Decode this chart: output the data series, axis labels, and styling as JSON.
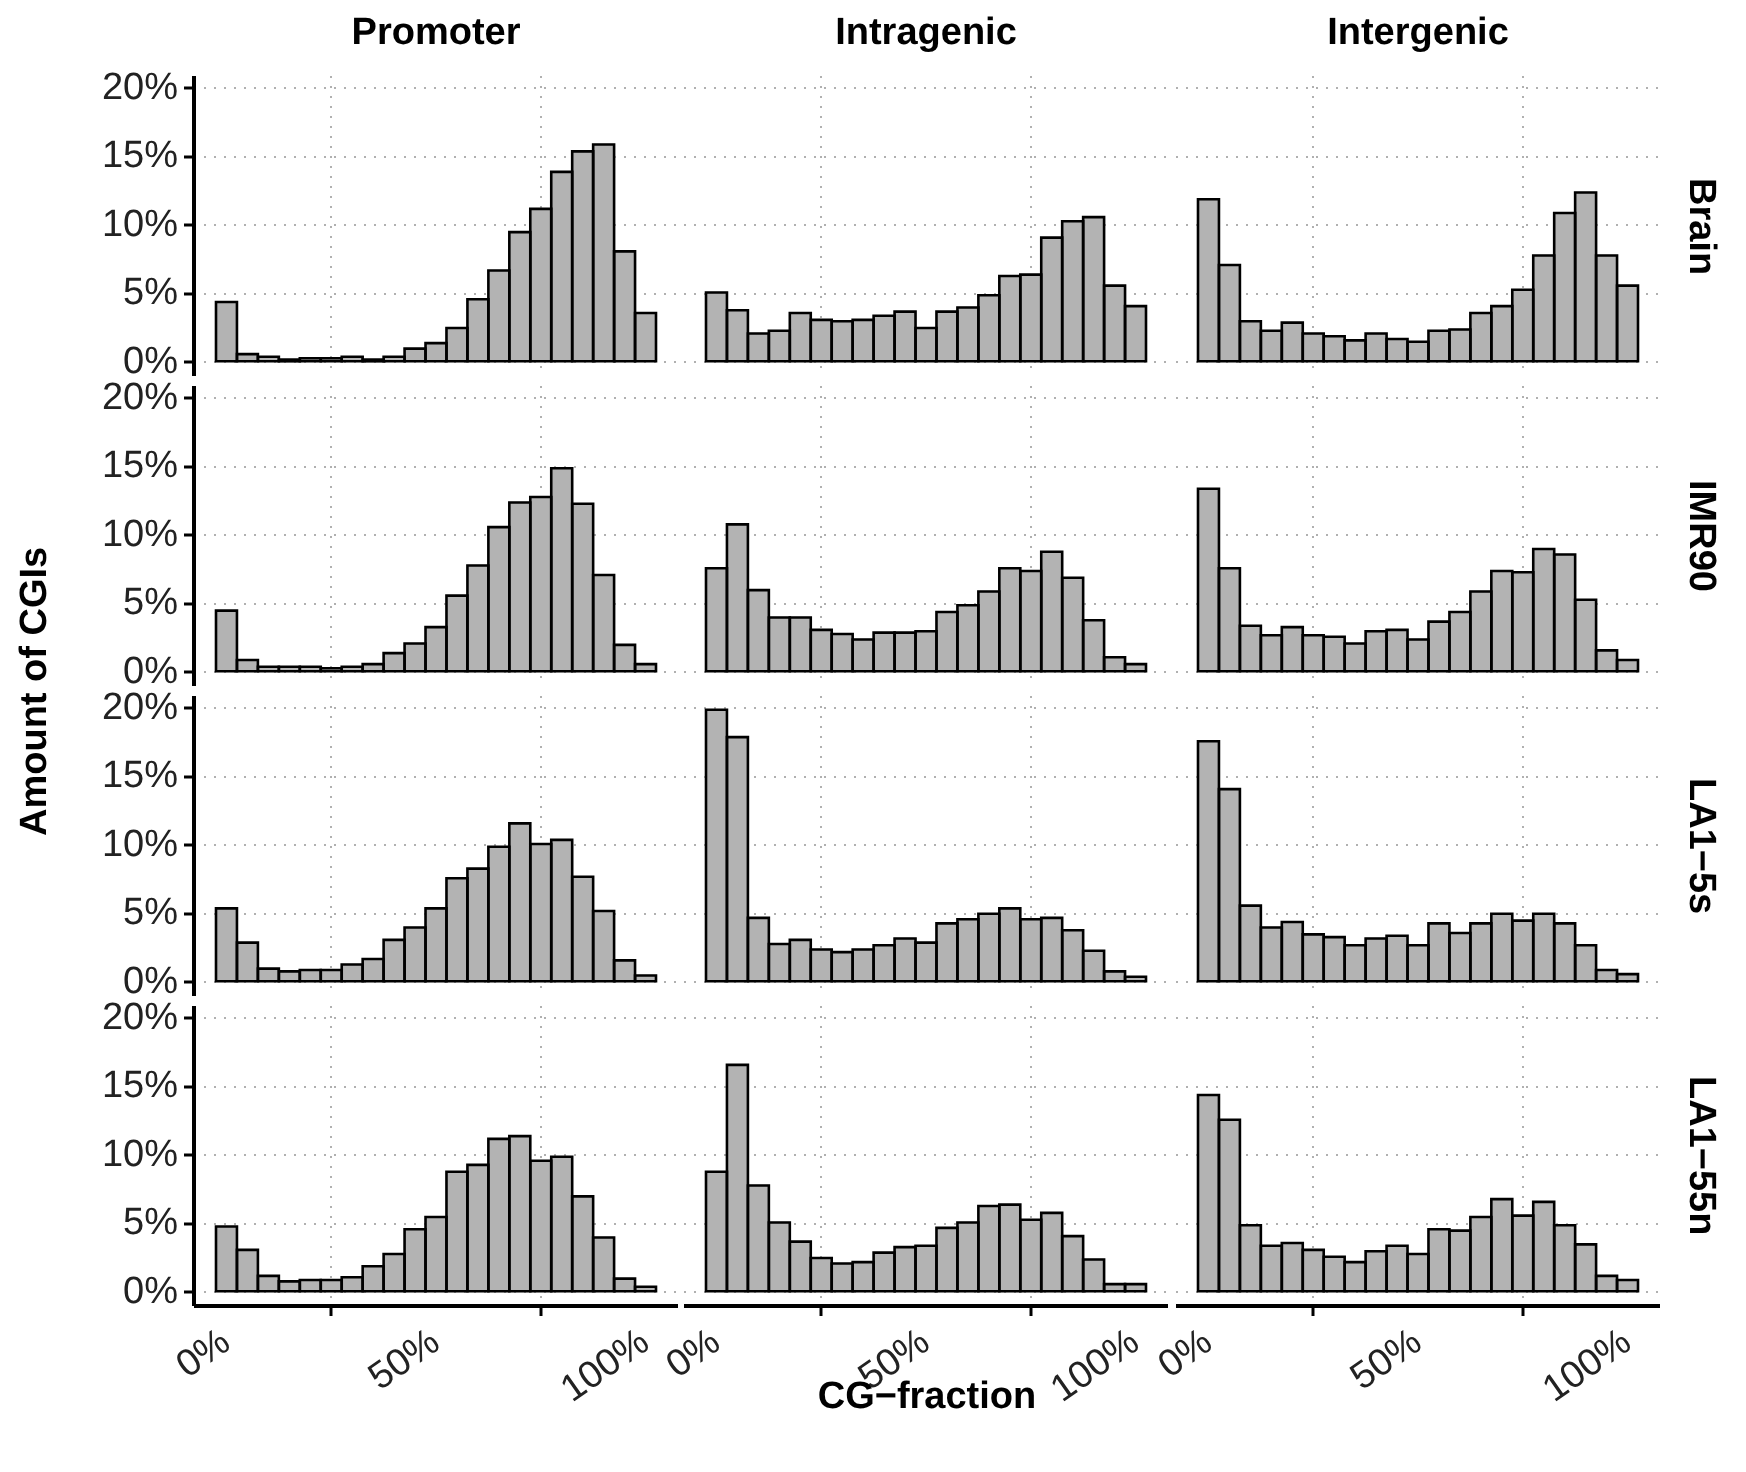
{
  "chart_data": [
    {
      "type": "histogram",
      "title": "Promoter",
      "ylabel": "Amount of CGIs",
      "tick_labels": "y",
      "color": "#b3b3b3",
      "grid": true,
      "bins": [
        -2.5,
        2.5,
        7.5,
        12.5,
        17.5,
        22.5,
        27.5,
        32.5,
        37.5,
        42.5,
        47.5,
        52.5,
        57.5,
        62.5,
        67.5,
        72.5,
        77.5,
        82.5,
        87.5,
        92.5,
        97.5,
        102.5
      ],
      "values": [
        4.4,
        0.6,
        0.4,
        0.2,
        0.3,
        0.3,
        0.4,
        0.2,
        0.4,
        1.0,
        1.4,
        2.5,
        4.6,
        6.7,
        9.5,
        11.2,
        13.9,
        15.4,
        15.9,
        8.1,
        3.6
      ],
      "xlim": [
        -7.75,
        107.75
      ],
      "ylim": [
        -1,
        20.9
      ],
      "xticks": [
        {
          "value": 0,
          "label": null
        },
        {
          "value": 50,
          "label": null
        },
        {
          "value": 100,
          "label": null
        }
      ],
      "yticks": [
        {
          "value": 0,
          "label": "0%"
        },
        {
          "value": 5,
          "label": "5%"
        },
        {
          "value": 10,
          "label": "10%"
        },
        {
          "value": 15,
          "label": "15%"
        },
        {
          "value": 20,
          "label": "20%"
        }
      ]
    },
    {
      "type": "histogram",
      "title": "Intragenic",
      "tick_labels": false,
      "color": "#b3b3b3",
      "grid": true,
      "bins": [
        -2.5,
        2.5,
        7.5,
        12.5,
        17.5,
        22.5,
        27.5,
        32.5,
        37.5,
        42.5,
        47.5,
        52.5,
        57.5,
        62.5,
        67.5,
        72.5,
        77.5,
        82.5,
        87.5,
        92.5,
        97.5,
        102.5
      ],
      "values": [
        5.1,
        3.8,
        2.1,
        2.3,
        3.6,
        3.1,
        3.0,
        3.1,
        3.4,
        3.7,
        2.5,
        3.7,
        4.0,
        4.9,
        6.3,
        6.4,
        9.1,
        10.3,
        10.6,
        5.6,
        4.1
      ],
      "xlim": [
        -7.75,
        107.75
      ],
      "ylim": [
        -1,
        20.9
      ],
      "xticks": [
        {
          "value": 0,
          "label": null
        },
        {
          "value": 50,
          "label": null
        },
        {
          "value": 100,
          "label": null
        }
      ],
      "yticks": [
        {
          "value": 0,
          "label": null
        },
        {
          "value": 5,
          "label": null
        },
        {
          "value": 10,
          "label": null
        },
        {
          "value": 15,
          "label": null
        },
        {
          "value": 20,
          "label": null
        }
      ]
    },
    {
      "type": "histogram",
      "title": "Intergenic",
      "y2label": "Brain",
      "tick_labels": false,
      "color": "#b3b3b3",
      "grid": true,
      "bins": [
        -2.5,
        2.5,
        7.5,
        12.5,
        17.5,
        22.5,
        27.5,
        32.5,
        37.5,
        42.5,
        47.5,
        52.5,
        57.5,
        62.5,
        67.5,
        72.5,
        77.5,
        82.5,
        87.5,
        92.5,
        97.5,
        102.5
      ],
      "values": [
        11.9,
        7.1,
        3.0,
        2.3,
        2.9,
        2.1,
        1.9,
        1.6,
        2.1,
        1.7,
        1.5,
        2.3,
        2.4,
        3.6,
        4.1,
        5.3,
        7.8,
        10.9,
        12.4,
        7.8,
        5.6
      ],
      "xlim": [
        -7.75,
        107.75
      ],
      "ylim": [
        -1,
        20.9
      ],
      "xticks": [
        {
          "value": 0,
          "label": null
        },
        {
          "value": 50,
          "label": null
        },
        {
          "value": 100,
          "label": null
        }
      ],
      "yticks": [
        {
          "value": 0,
          "label": null
        },
        {
          "value": 5,
          "label": null
        },
        {
          "value": 10,
          "label": null
        },
        {
          "value": 15,
          "label": null
        },
        {
          "value": 20,
          "label": null
        }
      ]
    },
    {
      "type": "histogram",
      "tick_labels": "y",
      "color": "#b3b3b3",
      "grid": true,
      "bins": [
        -2.5,
        2.5,
        7.5,
        12.5,
        17.5,
        22.5,
        27.5,
        32.5,
        37.5,
        42.5,
        47.5,
        52.5,
        57.5,
        62.5,
        67.5,
        72.5,
        77.5,
        82.5,
        87.5,
        92.5,
        97.5,
        102.5
      ],
      "values": [
        4.5,
        0.9,
        0.4,
        0.4,
        0.4,
        0.3,
        0.4,
        0.6,
        1.4,
        2.1,
        3.3,
        5.6,
        7.8,
        10.6,
        12.4,
        12.8,
        14.9,
        12.3,
        7.1,
        2.0,
        0.6
      ],
      "xlim": [
        -7.75,
        107.75
      ],
      "ylim": [
        -1,
        20.9
      ],
      "xticks": [
        {
          "value": 0,
          "label": null
        },
        {
          "value": 50,
          "label": null
        },
        {
          "value": 100,
          "label": null
        }
      ],
      "yticks": [
        {
          "value": 0,
          "label": "0%"
        },
        {
          "value": 5,
          "label": "5%"
        },
        {
          "value": 10,
          "label": "10%"
        },
        {
          "value": 15,
          "label": "15%"
        },
        {
          "value": 20,
          "label": "20%"
        }
      ]
    },
    {
      "type": "histogram",
      "tick_labels": false,
      "color": "#b3b3b3",
      "grid": true,
      "bins": [
        -2.5,
        2.5,
        7.5,
        12.5,
        17.5,
        22.5,
        27.5,
        32.5,
        37.5,
        42.5,
        47.5,
        52.5,
        57.5,
        62.5,
        67.5,
        72.5,
        77.5,
        82.5,
        87.5,
        92.5,
        97.5,
        102.5
      ],
      "values": [
        7.6,
        10.8,
        6.0,
        4.0,
        4.0,
        3.1,
        2.8,
        2.4,
        2.9,
        2.9,
        3.0,
        4.4,
        4.9,
        5.9,
        7.6,
        7.4,
        8.8,
        6.9,
        3.8,
        1.1,
        0.6
      ],
      "xlim": [
        -7.75,
        107.75
      ],
      "ylim": [
        -1,
        20.9
      ],
      "xticks": [
        {
          "value": 0,
          "label": null
        },
        {
          "value": 50,
          "label": null
        },
        {
          "value": 100,
          "label": null
        }
      ],
      "yticks": [
        {
          "value": 0,
          "label": null
        },
        {
          "value": 5,
          "label": null
        },
        {
          "value": 10,
          "label": null
        },
        {
          "value": 15,
          "label": null
        },
        {
          "value": 20,
          "label": null
        }
      ]
    },
    {
      "type": "histogram",
      "y2label": "IMR90",
      "tick_labels": false,
      "color": "#b3b3b3",
      "grid": true,
      "bins": [
        -2.5,
        2.5,
        7.5,
        12.5,
        17.5,
        22.5,
        27.5,
        32.5,
        37.5,
        42.5,
        47.5,
        52.5,
        57.5,
        62.5,
        67.5,
        72.5,
        77.5,
        82.5,
        87.5,
        92.5,
        97.5,
        102.5
      ],
      "values": [
        13.4,
        7.6,
        3.4,
        2.7,
        3.3,
        2.7,
        2.6,
        2.1,
        3.0,
        3.1,
        2.4,
        3.7,
        4.4,
        5.9,
        7.4,
        7.3,
        9.0,
        8.6,
        5.3,
        1.6,
        0.9
      ],
      "xlim": [
        -7.75,
        107.75
      ],
      "ylim": [
        -1,
        20.9
      ],
      "xticks": [
        {
          "value": 0,
          "label": null
        },
        {
          "value": 50,
          "label": null
        },
        {
          "value": 100,
          "label": null
        }
      ],
      "yticks": [
        {
          "value": 0,
          "label": null
        },
        {
          "value": 5,
          "label": null
        },
        {
          "value": 10,
          "label": null
        },
        {
          "value": 15,
          "label": null
        },
        {
          "value": 20,
          "label": null
        }
      ]
    },
    {
      "type": "histogram",
      "tick_labels": "y",
      "color": "#b3b3b3",
      "grid": true,
      "bins": [
        -2.5,
        2.5,
        7.5,
        12.5,
        17.5,
        22.5,
        27.5,
        32.5,
        37.5,
        42.5,
        47.5,
        52.5,
        57.5,
        62.5,
        67.5,
        72.5,
        77.5,
        82.5,
        87.5,
        92.5,
        97.5,
        102.5
      ],
      "values": [
        5.4,
        2.9,
        1.0,
        0.8,
        0.9,
        0.9,
        1.3,
        1.7,
        3.1,
        4.0,
        5.4,
        7.6,
        8.3,
        9.9,
        11.6,
        10.1,
        10.4,
        7.7,
        5.2,
        1.6,
        0.5
      ],
      "xlim": [
        -7.75,
        107.75
      ],
      "ylim": [
        -1,
        20.9
      ],
      "xticks": [
        {
          "value": 0,
          "label": null
        },
        {
          "value": 50,
          "label": null
        },
        {
          "value": 100,
          "label": null
        }
      ],
      "yticks": [
        {
          "value": 0,
          "label": "0%"
        },
        {
          "value": 5,
          "label": "5%"
        },
        {
          "value": 10,
          "label": "10%"
        },
        {
          "value": 15,
          "label": "15%"
        },
        {
          "value": 20,
          "label": "20%"
        }
      ]
    },
    {
      "type": "histogram",
      "tick_labels": false,
      "color": "#b3b3b3",
      "grid": true,
      "bins": [
        -2.5,
        2.5,
        7.5,
        12.5,
        17.5,
        22.5,
        27.5,
        32.5,
        37.5,
        42.5,
        47.5,
        52.5,
        57.5,
        62.5,
        67.5,
        72.5,
        77.5,
        82.5,
        87.5,
        92.5,
        97.5,
        102.5
      ],
      "values": [
        19.9,
        17.9,
        4.7,
        2.8,
        3.1,
        2.4,
        2.2,
        2.4,
        2.7,
        3.2,
        2.9,
        4.3,
        4.6,
        5.0,
        5.4,
        4.6,
        4.7,
        3.8,
        2.3,
        0.8,
        0.4
      ],
      "xlim": [
        -7.75,
        107.75
      ],
      "ylim": [
        -1,
        20.9
      ],
      "xticks": [
        {
          "value": 0,
          "label": null
        },
        {
          "value": 50,
          "label": null
        },
        {
          "value": 100,
          "label": null
        }
      ],
      "yticks": [
        {
          "value": 0,
          "label": null
        },
        {
          "value": 5,
          "label": null
        },
        {
          "value": 10,
          "label": null
        },
        {
          "value": 15,
          "label": null
        },
        {
          "value": 20,
          "label": null
        }
      ]
    },
    {
      "type": "histogram",
      "y2label": "LA1−5s",
      "tick_labels": false,
      "color": "#b3b3b3",
      "grid": true,
      "bins": [
        -2.5,
        2.5,
        7.5,
        12.5,
        17.5,
        22.5,
        27.5,
        32.5,
        37.5,
        42.5,
        47.5,
        52.5,
        57.5,
        62.5,
        67.5,
        72.5,
        77.5,
        82.5,
        87.5,
        92.5,
        97.5,
        102.5
      ],
      "values": [
        17.6,
        14.1,
        5.6,
        4.0,
        4.4,
        3.5,
        3.3,
        2.7,
        3.2,
        3.4,
        2.7,
        4.3,
        3.6,
        4.3,
        5.0,
        4.5,
        5.0,
        4.3,
        2.7,
        0.9,
        0.6
      ],
      "xlim": [
        -7.75,
        107.75
      ],
      "ylim": [
        -1,
        20.9
      ],
      "xticks": [
        {
          "value": 0,
          "label": null
        },
        {
          "value": 50,
          "label": null
        },
        {
          "value": 100,
          "label": null
        }
      ],
      "yticks": [
        {
          "value": 0,
          "label": null
        },
        {
          "value": 5,
          "label": null
        },
        {
          "value": 10,
          "label": null
        },
        {
          "value": 15,
          "label": null
        },
        {
          "value": 20,
          "label": null
        }
      ]
    },
    {
      "type": "histogram",
      "color": "#b3b3b3",
      "grid": true,
      "bins": [
        -2.5,
        2.5,
        7.5,
        12.5,
        17.5,
        22.5,
        27.5,
        32.5,
        37.5,
        42.5,
        47.5,
        52.5,
        57.5,
        62.5,
        67.5,
        72.5,
        77.5,
        82.5,
        87.5,
        92.5,
        97.5,
        102.5
      ],
      "values": [
        4.8,
        3.1,
        1.2,
        0.8,
        0.9,
        0.9,
        1.1,
        1.9,
        2.8,
        4.6,
        5.5,
        8.8,
        9.3,
        11.2,
        11.4,
        9.6,
        9.9,
        7.0,
        4.0,
        1.0,
        0.4
      ],
      "xlim": [
        -7.75,
        107.75
      ],
      "ylim": [
        -1,
        20.9
      ],
      "xticks": [
        {
          "value": 0,
          "label": "0%"
        },
        {
          "value": 50,
          "label": "50%"
        },
        {
          "value": 100,
          "label": "100%"
        }
      ],
      "yticks": [
        {
          "value": 0,
          "label": "0%"
        },
        {
          "value": 5,
          "label": "5%"
        },
        {
          "value": 10,
          "label": "10%"
        },
        {
          "value": 15,
          "label": "15%"
        },
        {
          "value": 20,
          "label": "20%"
        }
      ]
    },
    {
      "type": "histogram",
      "xlabel": "CG−fraction",
      "tick_labels": "x",
      "color": "#b3b3b3",
      "grid": true,
      "bins": [
        -2.5,
        2.5,
        7.5,
        12.5,
        17.5,
        22.5,
        27.5,
        32.5,
        37.5,
        42.5,
        47.5,
        52.5,
        57.5,
        62.5,
        67.5,
        72.5,
        77.5,
        82.5,
        87.5,
        92.5,
        97.5,
        102.5
      ],
      "values": [
        8.8,
        16.6,
        7.8,
        5.1,
        3.7,
        2.5,
        2.1,
        2.2,
        2.9,
        3.3,
        3.4,
        4.7,
        5.1,
        6.3,
        6.4,
        5.3,
        5.8,
        4.1,
        2.4,
        0.6,
        0.6
      ],
      "xlim": [
        -7.75,
        107.75
      ],
      "ylim": [
        -1,
        20.9
      ],
      "xticks": [
        {
          "value": 0,
          "label": "0%"
        },
        {
          "value": 50,
          "label": "50%"
        },
        {
          "value": 100,
          "label": "100%"
        }
      ],
      "yticks": [
        {
          "value": 0,
          "label": null
        },
        {
          "value": 5,
          "label": null
        },
        {
          "value": 10,
          "label": null
        },
        {
          "value": 15,
          "label": null
        },
        {
          "value": 20,
          "label": null
        }
      ]
    },
    {
      "type": "histogram",
      "y2label": "LA1−55n",
      "tick_labels": "x",
      "color": "#b3b3b3",
      "grid": true,
      "bins": [
        -2.5,
        2.5,
        7.5,
        12.5,
        17.5,
        22.5,
        27.5,
        32.5,
        37.5,
        42.5,
        47.5,
        52.5,
        57.5,
        62.5,
        67.5,
        72.5,
        77.5,
        82.5,
        87.5,
        92.5,
        97.5,
        102.5
      ],
      "values": [
        14.4,
        12.6,
        4.9,
        3.4,
        3.6,
        3.1,
        2.6,
        2.2,
        3.0,
        3.4,
        2.8,
        4.6,
        4.5,
        5.5,
        6.8,
        5.6,
        6.6,
        4.9,
        3.5,
        1.2,
        0.9
      ],
      "xlim": [
        -7.75,
        107.75
      ],
      "ylim": [
        -1,
        20.9
      ],
      "xticks": [
        {
          "value": 0,
          "label": "0%"
        },
        {
          "value": 50,
          "label": "50%"
        },
        {
          "value": 100,
          "label": "100%"
        }
      ],
      "yticks": [
        {
          "value": 0,
          "label": null
        },
        {
          "value": 5,
          "label": null
        },
        {
          "value": 10,
          "label": null
        },
        {
          "value": 15,
          "label": null
        },
        {
          "value": 20,
          "label": null
        }
      ]
    }
  ]
}
